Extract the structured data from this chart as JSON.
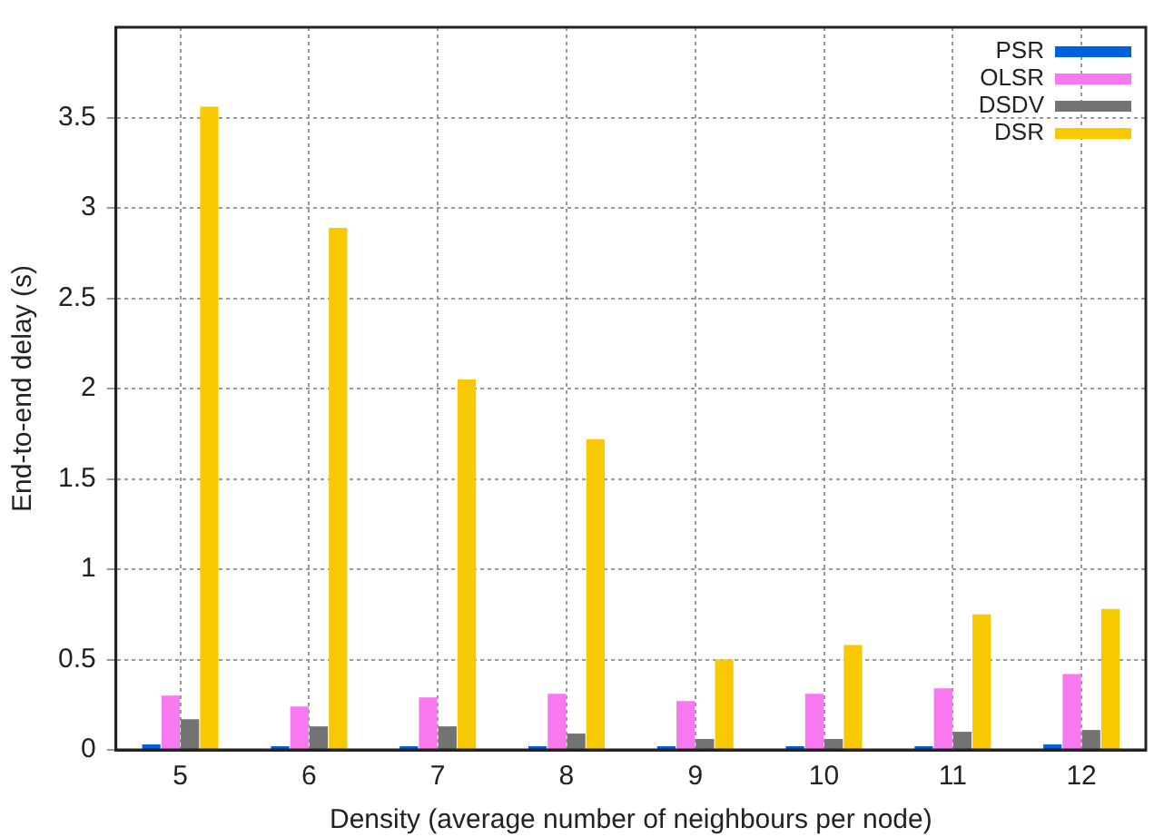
{
  "chart_data": {
    "type": "bar",
    "xlabel": "Density (average number of neighbours per node)",
    "ylabel": "End-to-end delay (s)",
    "categories": [
      "5",
      "6",
      "7",
      "8",
      "9",
      "10",
      "11",
      "12"
    ],
    "series": [
      {
        "name": "PSR",
        "color": "#0060e0",
        "values": [
          0.03,
          0.02,
          0.02,
          0.02,
          0.02,
          0.02,
          0.02,
          0.03
        ]
      },
      {
        "name": "OLSR",
        "color": "#f878f0",
        "values": [
          0.3,
          0.24,
          0.29,
          0.31,
          0.27,
          0.31,
          0.34,
          0.42
        ]
      },
      {
        "name": "DSDV",
        "color": "#737373",
        "values": [
          0.17,
          0.13,
          0.13,
          0.09,
          0.06,
          0.06,
          0.1,
          0.11
        ]
      },
      {
        "name": "DSR",
        "color": "#f8c800",
        "values": [
          3.56,
          2.89,
          2.05,
          1.72,
          0.5,
          0.58,
          0.75,
          0.78
        ]
      }
    ],
    "ylim": [
      0,
      4
    ],
    "yticks": [
      0,
      0.5,
      1,
      1.5,
      2,
      2.5,
      3,
      3.5
    ],
    "grid": true,
    "legend": "top right"
  }
}
